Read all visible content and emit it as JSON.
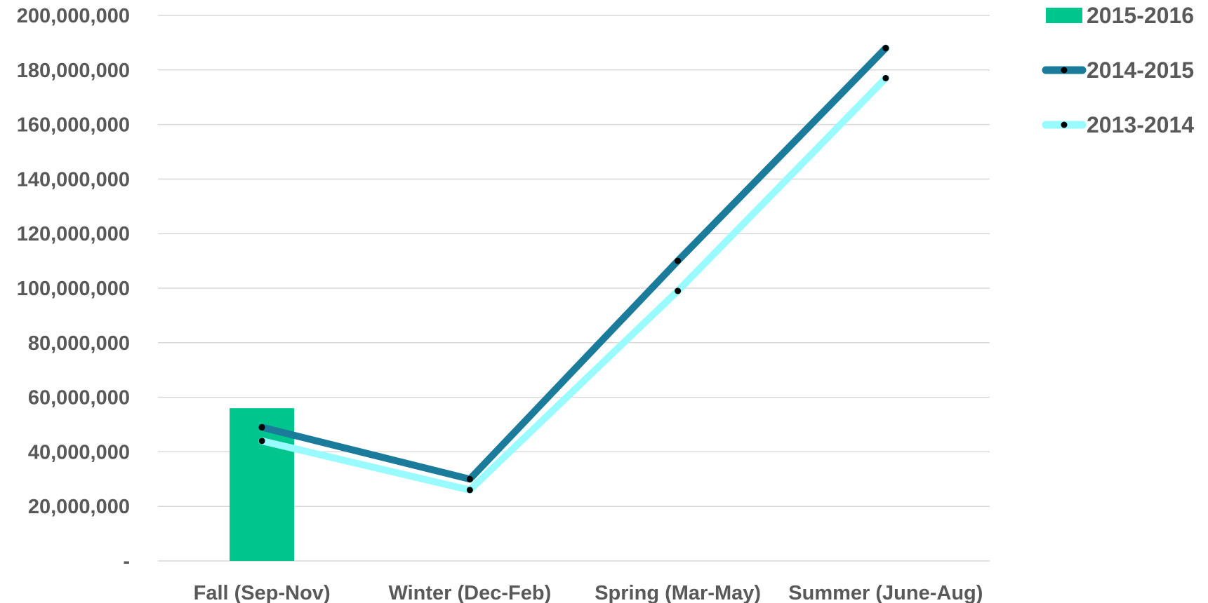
{
  "chart_data": {
    "type": "bar",
    "categories": [
      "Fall (Sep-Nov)",
      "Winter (Dec-Feb)",
      "Spring (Mar-May)",
      "Summer (June-Aug)"
    ],
    "ylim": [
      0,
      200000000
    ],
    "yticks": [
      0,
      20000000,
      40000000,
      60000000,
      80000000,
      100000000,
      120000000,
      140000000,
      160000000,
      180000000,
      200000000
    ],
    "ytick_labels": [
      "-",
      "20,000,000",
      "40,000,000",
      "60,000,000",
      "80,000,000",
      "100,000,000",
      "120,000,000",
      "140,000,000",
      "160,000,000",
      "180,000,000",
      "200,000,000"
    ],
    "grid": true,
    "legend_position": "top-right",
    "title": "",
    "xlabel": "",
    "ylabel": "",
    "series": [
      {
        "name": "2015-2016",
        "type": "bar",
        "color": "#00c58c",
        "values": [
          56000000,
          null,
          null,
          null
        ]
      },
      {
        "name": "2014-2015",
        "type": "line",
        "color": "#1b7b9b",
        "values": [
          49000000,
          30000000,
          110000000,
          188000000
        ]
      },
      {
        "name": "2013-2014",
        "type": "line",
        "color": "#99fbff",
        "values": [
          44000000,
          26000000,
          99000000,
          177000000
        ]
      }
    ]
  }
}
